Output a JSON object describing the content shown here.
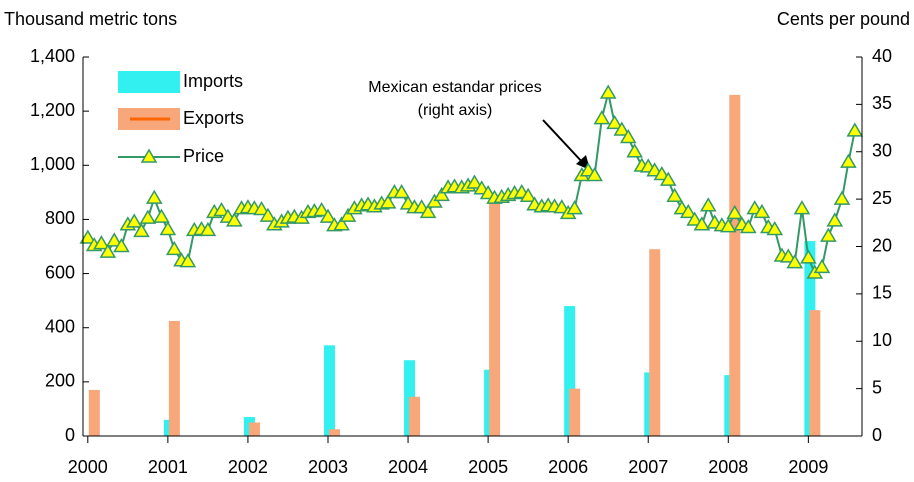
{
  "chart_data": {
    "type": "bar-line",
    "y_axis_label": "Thousand metric tons",
    "y2_axis_label": "Cents per pound",
    "annotation": [
      "Mexican estandar prices",
      "(right axis)"
    ],
    "xlim": [
      1999.94,
      2009.67
    ],
    "xticks": [
      2000,
      2001,
      2002,
      2003,
      2004,
      2005,
      2006,
      2007,
      2008,
      2009
    ],
    "ylim": [
      0,
      1400
    ],
    "yticks": [
      0,
      200,
      400,
      600,
      800,
      {
        "value": 1000,
        "label": "1,000"
      },
      {
        "value": 1200,
        "label": "1,200"
      },
      {
        "value": 1400,
        "label": "1,400"
      }
    ],
    "y2lim": [
      0,
      40
    ],
    "y2ticks": [
      0,
      5,
      10,
      15,
      20,
      25,
      30,
      35,
      40
    ],
    "grid": false,
    "legend": "top-left",
    "series": [
      {
        "name": "Imports",
        "type": "bar",
        "color": "#33f0f0",
        "x": [
          2000,
          2001,
          2002,
          2003,
          2004,
          2005,
          2006,
          2007,
          2008,
          2009
        ],
        "values": [
          0,
          60,
          70,
          335,
          280,
          245,
          480,
          235,
          225,
          720
        ]
      },
      {
        "name": "Exports",
        "type": "bar",
        "color": "#f7a77a",
        "x": [
          2000,
          2001,
          2002,
          2003,
          2004,
          2005,
          2006,
          2007,
          2008,
          2009
        ],
        "values": [
          170,
          425,
          50,
          25,
          145,
          890,
          175,
          690,
          1260,
          465
        ]
      },
      {
        "name": "Price",
        "type": "line",
        "axis": "y2",
        "color": "#339966",
        "marker_color": "#ffff00",
        "x": [
          2000,
          2000.08,
          2000.17,
          2000.25,
          2000.33,
          2000.42,
          2000.5,
          2000.58,
          2000.67,
          2000.75,
          2000.83,
          2000.92,
          2001,
          2001.08,
          2001.17,
          2001.25,
          2001.33,
          2001.42,
          2001.5,
          2001.58,
          2001.67,
          2001.75,
          2001.83,
          2001.92,
          2002,
          2002.08,
          2002.17,
          2002.25,
          2002.33,
          2002.42,
          2002.5,
          2002.58,
          2002.67,
          2002.75,
          2002.83,
          2002.92,
          2003,
          2003.08,
          2003.17,
          2003.25,
          2003.33,
          2003.42,
          2003.5,
          2003.58,
          2003.67,
          2003.75,
          2003.83,
          2003.92,
          2004,
          2004.08,
          2004.17,
          2004.25,
          2004.33,
          2004.42,
          2004.5,
          2004.58,
          2004.67,
          2004.75,
          2004.83,
          2004.92,
          2005,
          2005.08,
          2005.17,
          2005.25,
          2005.33,
          2005.42,
          2005.5,
          2005.58,
          2005.67,
          2005.75,
          2005.83,
          2005.92,
          2006,
          2006.08,
          2006.17,
          2006.25,
          2006.33,
          2006.42,
          2006.5,
          2006.58,
          2006.67,
          2006.75,
          2006.83,
          2006.92,
          2007,
          2007.08,
          2007.17,
          2007.25,
          2007.33,
          2007.42,
          2007.5,
          2007.58,
          2007.67,
          2007.75,
          2007.83,
          2007.92,
          2008,
          2008.08,
          2008.17,
          2008.25,
          2008.33,
          2008.42,
          2008.5,
          2008.58,
          2008.67,
          2008.75,
          2008.83,
          2008.92,
          2009,
          2009.08,
          2009.17,
          2009.25,
          2009.33,
          2009.42,
          2009.5,
          2009.58
        ],
        "values": [
          20.9,
          20.1,
          20.3,
          19.4,
          20.6,
          20.0,
          22.3,
          22.6,
          21.6,
          23.0,
          25.1,
          23.1,
          21.8,
          19.7,
          18.5,
          18.4,
          21.7,
          21.8,
          21.7,
          23.6,
          23.8,
          23.1,
          22.7,
          24.0,
          24.1,
          24.0,
          23.9,
          23.2,
          22.3,
          22.6,
          23.0,
          23.1,
          23.0,
          23.6,
          23.7,
          23.8,
          23.1,
          22.2,
          22.3,
          23.2,
          24.0,
          24.3,
          24.4,
          24.2,
          24.5,
          24.6,
          25.7,
          25.7,
          24.5,
          24.1,
          24.1,
          23.6,
          24.7,
          25.4,
          26.2,
          26.3,
          26.2,
          26.4,
          26.7,
          26.1,
          25.6,
          25.1,
          25.2,
          25.4,
          25.6,
          25.7,
          25.3,
          24.4,
          24.2,
          24.3,
          24.2,
          24.1,
          23.5,
          24.0,
          27.5,
          28.0,
          27.5,
          33.5,
          36.2,
          33.0,
          32.3,
          31.5,
          30.0,
          28.5,
          28.4,
          28.0,
          27.6,
          27.0,
          25.3,
          24.0,
          23.6,
          22.8,
          22.3,
          24.3,
          22.5,
          22.2,
          22.1,
          23.5,
          22.3,
          22.0,
          24.0,
          23.6,
          22.0,
          21.8,
          19.0,
          18.9,
          18.3,
          24.0,
          18.8,
          17.2,
          17.8,
          21.1,
          22.7,
          25.0,
          28.9,
          32.2
        ]
      }
    ]
  }
}
